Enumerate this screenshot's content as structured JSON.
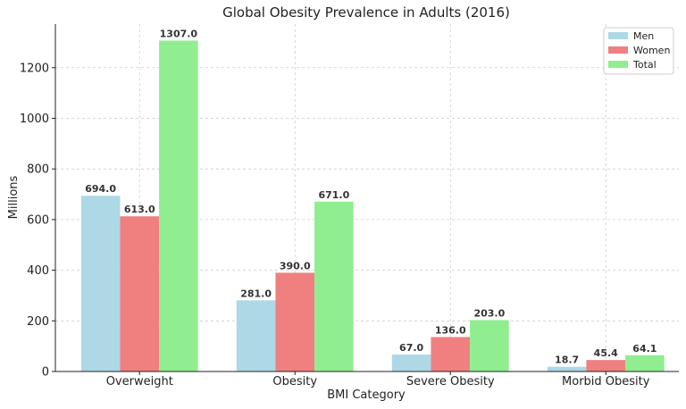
{
  "chart_data": {
    "type": "bar",
    "title": "Global Obesity Prevalence in Adults (2016)",
    "xlabel": "BMI Category",
    "ylabel": "Millions",
    "categories": [
      "Overweight",
      "Obesity",
      "Severe Obesity",
      "Morbid Obesity"
    ],
    "series": [
      {
        "name": "Men",
        "values": [
          694.0,
          281.0,
          67.0,
          18.7
        ],
        "color": "#add8e6"
      },
      {
        "name": "Women",
        "values": [
          613.0,
          390.0,
          136.0,
          45.4
        ],
        "color": "#f08080"
      },
      {
        "name": "Total",
        "values": [
          1307.0,
          671.0,
          203.0,
          64.1
        ],
        "color": "#90ee90"
      }
    ],
    "data_labels": [
      [
        "694.0",
        "281.0",
        "67.0",
        "18.7"
      ],
      [
        "613.0",
        "390.0",
        "136.0",
        "45.4"
      ],
      [
        "1307.0",
        "671.0",
        "203.0",
        "64.1"
      ]
    ],
    "ylim": [
      0,
      1372
    ],
    "yticks": [
      0,
      200,
      400,
      600,
      800,
      1000,
      1200
    ],
    "ytick_labels": [
      "0",
      "200",
      "400",
      "600",
      "800",
      "1000",
      "1200"
    ],
    "grid": true,
    "legend_position": "top-right"
  }
}
